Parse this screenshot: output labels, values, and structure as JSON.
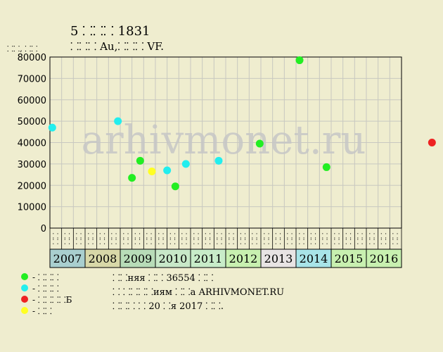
{
  "header": {
    "title": "5 ⸬⸬⸬ 1831",
    "subtitle": "⸬⸬⸬ Au,⸬⸬⸬ VF."
  },
  "legend": [
    {
      "label": "- ⸬⸬⸬",
      "color": "#22ee22"
    },
    {
      "label": "- ⸬⸬⸬",
      "color": "#22eeee"
    },
    {
      "label": "- ⸬⸬⸬⸬Б",
      "color": "#ee2222"
    },
    {
      "label": "- ⸬⸬",
      "color": "#ffff22"
    }
  ],
  "notes": [
    "⸬⸬няя ⸬⸬ 36554 ⸬⸬",
    "⸬ ⸬⸬⸬⸬иям ⸬⸬а ARHIVMONET.RU",
    "⸬⸬⸬ ⸬ 20 ⸬я 2017 ⸬⸬."
  ],
  "watermark": "arhivmonet.ru",
  "chart_data": {
    "type": "scatter",
    "ylabel": "⸬⸬, ⸬⸬",
    "ylim": [
      0,
      80000
    ],
    "yticks": [
      0,
      10000,
      20000,
      30000,
      40000,
      50000,
      60000,
      70000,
      80000
    ],
    "grid": true,
    "years": [
      "2007",
      "2008",
      "2009",
      "2010",
      "2011",
      "2012",
      "2013",
      "2014",
      "2015",
      "2016"
    ],
    "year_colors": [
      "#a9cfcf",
      "#d8d8a8",
      "#b8dcb8",
      "#c8e8c8",
      "#c8ecc8",
      "#c8f0b0",
      "#e8e4e4",
      "#a8e4e8",
      "#c8f0b0",
      "#c8f0b0"
    ],
    "subperiods": [
      "⸬⸬",
      "⸬⸬",
      "⸬⸬"
    ],
    "points": [
      {
        "x": 0.2,
        "y": 47000,
        "color": "#22eeee"
      },
      {
        "x": 5.8,
        "y": 50000,
        "color": "#22eeee"
      },
      {
        "x": 7.0,
        "y": 23500,
        "color": "#22ee22"
      },
      {
        "x": 7.7,
        "y": 31500,
        "color": "#22ee22"
      },
      {
        "x": 8.7,
        "y": 26500,
        "color": "#ffff22"
      },
      {
        "x": 10.0,
        "y": 27000,
        "color": "#22eeee"
      },
      {
        "x": 10.7,
        "y": 19500,
        "color": "#22ee22"
      },
      {
        "x": 11.6,
        "y": 30000,
        "color": "#22eeee"
      },
      {
        "x": 14.4,
        "y": 31500,
        "color": "#22eeee"
      },
      {
        "x": 17.9,
        "y": 39500,
        "color": "#22ee22"
      },
      {
        "x": 21.3,
        "y": 78500,
        "color": "#22ee22"
      },
      {
        "x": 23.6,
        "y": 28500,
        "color": "#22ee22"
      },
      {
        "x": 32.6,
        "y": 40000,
        "color": "#ee2222"
      }
    ]
  }
}
